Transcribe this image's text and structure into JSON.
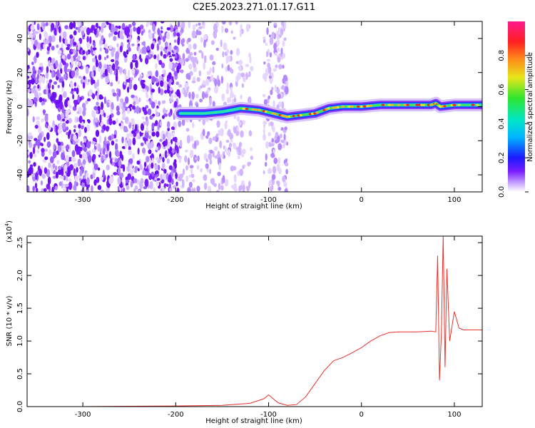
{
  "title": "C2E5.2023.271.01.17.G11",
  "chart_data": [
    {
      "type": "heatmap",
      "xlabel": "Height of straight line (km)",
      "ylabel": "Frequency (Hz)",
      "xlim": [
        -360,
        130
      ],
      "ylim": [
        -50,
        50
      ],
      "xticks": [
        -300,
        -200,
        -100,
        0,
        100
      ],
      "yticks": [
        -40,
        -20,
        0,
        20,
        40
      ],
      "ridge": {
        "x": [
          -195,
          -170,
          -150,
          -130,
          -110,
          -95,
          -80,
          -65,
          -50,
          -35,
          -20,
          0,
          20,
          40,
          60,
          75,
          80,
          85,
          100,
          130
        ],
        "y": [
          -4,
          -4,
          -3,
          -1,
          -2,
          -4,
          -6,
          -5,
          -4,
          -1,
          0,
          0,
          1,
          1,
          1,
          1,
          2,
          0,
          1,
          1
        ]
      },
      "colorbar": {
        "label": "Normalized spectral amplitude",
        "range": [
          0.0,
          1.0
        ],
        "ticks": [
          0.0,
          0.2,
          0.4,
          0.6,
          0.8
        ]
      },
      "grid": false
    },
    {
      "type": "line",
      "xlabel": "Height of straight line (km)",
      "ylabel": "SNR (10 * v/v)",
      "exponent_label": "(x10",
      "exponent_power": "4",
      "exponent_close": ")",
      "xlim": [
        -360,
        130
      ],
      "ylim": [
        0,
        2.6
      ],
      "xticks": [
        -300,
        -200,
        -100,
        0,
        100
      ],
      "yticks": [
        0.0,
        0.5,
        1.0,
        1.5,
        2.0,
        2.5
      ],
      "series": [
        {
          "color": "#e8322b",
          "x": [
            -360,
            -300,
            -250,
            -200,
            -150,
            -120,
            -105,
            -100,
            -95,
            -90,
            -80,
            -70,
            -60,
            -50,
            -40,
            -30,
            -20,
            -10,
            0,
            10,
            20,
            30,
            40,
            60,
            75,
            80,
            82,
            84,
            86,
            88,
            90,
            92,
            95,
            100,
            105,
            110,
            130
          ],
          "y": [
            0.0,
            0.0,
            0.005,
            0.01,
            0.02,
            0.05,
            0.12,
            0.18,
            0.12,
            0.06,
            0.02,
            0.03,
            0.15,
            0.35,
            0.55,
            0.7,
            0.75,
            0.82,
            0.9,
            1.0,
            1.08,
            1.13,
            1.14,
            1.14,
            1.15,
            1.14,
            2.3,
            0.4,
            1.1,
            2.6,
            0.6,
            2.1,
            1.0,
            1.45,
            1.2,
            1.17,
            1.17
          ]
        }
      ],
      "grid": false
    }
  ]
}
